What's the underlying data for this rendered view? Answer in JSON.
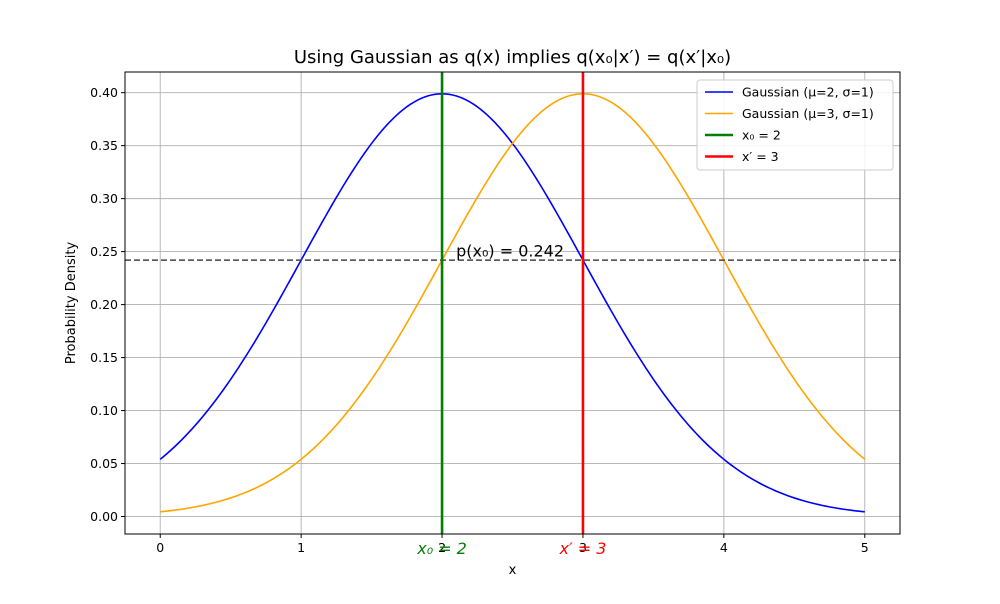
{
  "chart_data": {
    "type": "line",
    "title": "Using Gaussian as q(x) implies q(x₀|x′) = q(x′|x₀)",
    "xlabel": "x",
    "ylabel": "Probability Density",
    "xlim": [
      -0.25,
      5.25
    ],
    "ylim": [
      -0.0165,
      0.4195
    ],
    "x_ticks": [
      "0",
      "1",
      "2",
      "3",
      "4",
      "5"
    ],
    "y_ticks": [
      "0.00",
      "0.05",
      "0.10",
      "0.15",
      "0.20",
      "0.25",
      "0.30",
      "0.35",
      "0.40"
    ],
    "grid": true,
    "legend_position": "top-right",
    "series": [
      {
        "name": "Gaussian (μ=2, σ=1)",
        "mu": 2,
        "sigma": 1,
        "x_range": [
          0,
          5
        ],
        "color": "#0000ff"
      },
      {
        "name": "Gaussian (μ=3, σ=1)",
        "mu": 3,
        "sigma": 1,
        "x_range": [
          0,
          5
        ],
        "color": "#ffa500"
      }
    ],
    "vlines": [
      {
        "name": "x₀ = 2",
        "x": 2,
        "color": "#008000",
        "label": "x₀ = 2"
      },
      {
        "name": "x′ = 3",
        "x": 3,
        "color": "#ff0000",
        "label": "x′ = 3"
      }
    ],
    "hline": {
      "y": 0.242,
      "color": "#444444",
      "style": "dashed"
    },
    "annotation": {
      "text": "p(x₀) = 0.242",
      "x": 2.1,
      "y": 0.25
    }
  }
}
